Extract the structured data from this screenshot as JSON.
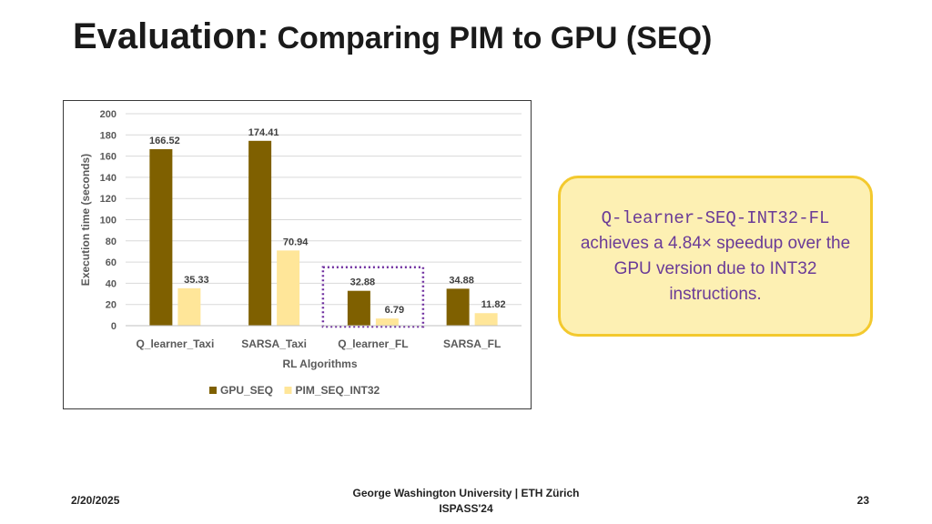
{
  "slide": {
    "title_main": "Evaluation:",
    "title_sub": "Comparing PIM to GPU (SEQ)"
  },
  "callout": {
    "code": "Q-learner-SEQ-INT32-FL",
    "text": "achieves a 4.84× speedup over the GPU version due to INT32 instructions.",
    "colors": {
      "background": "#fdf0b3",
      "border": "#f3c92e",
      "text": "#6a3b97"
    }
  },
  "footer": {
    "date": "2/20/2025",
    "affiliation": "George Washington University | ETH Zürich",
    "venue": "ISPASS'24",
    "page_number": "23"
  },
  "chart_data": {
    "type": "bar",
    "categories": [
      "Q_learner_Taxi",
      "SARSA_Taxi",
      "Q_learner_FL",
      "SARSA_FL"
    ],
    "series": [
      {
        "name": "GPU_SEQ",
        "values": [
          166.52,
          174.41,
          32.88,
          34.88
        ],
        "labels": [
          "166.52",
          "174.41",
          "32.88",
          "34.88"
        ],
        "color": "#7f6000"
      },
      {
        "name": "PIM_SEQ_INT32",
        "values": [
          35.33,
          70.94,
          6.79,
          11.82
        ],
        "labels": [
          "35.33",
          "70.94",
          "6.79",
          "11.82"
        ],
        "color": "#ffe699"
      }
    ],
    "title": "",
    "xlabel": "RL Algorithms",
    "ylabel": "Execution time (seconds)",
    "ylim": [
      0,
      200
    ],
    "yticks": [
      "0",
      "20",
      "40",
      "60",
      "80",
      "100",
      "120",
      "140",
      "160",
      "180",
      "200"
    ],
    "grid": true,
    "legend": "bottom",
    "highlighted_category": "Q_learner_FL",
    "highlight_color": "#7030a0"
  }
}
